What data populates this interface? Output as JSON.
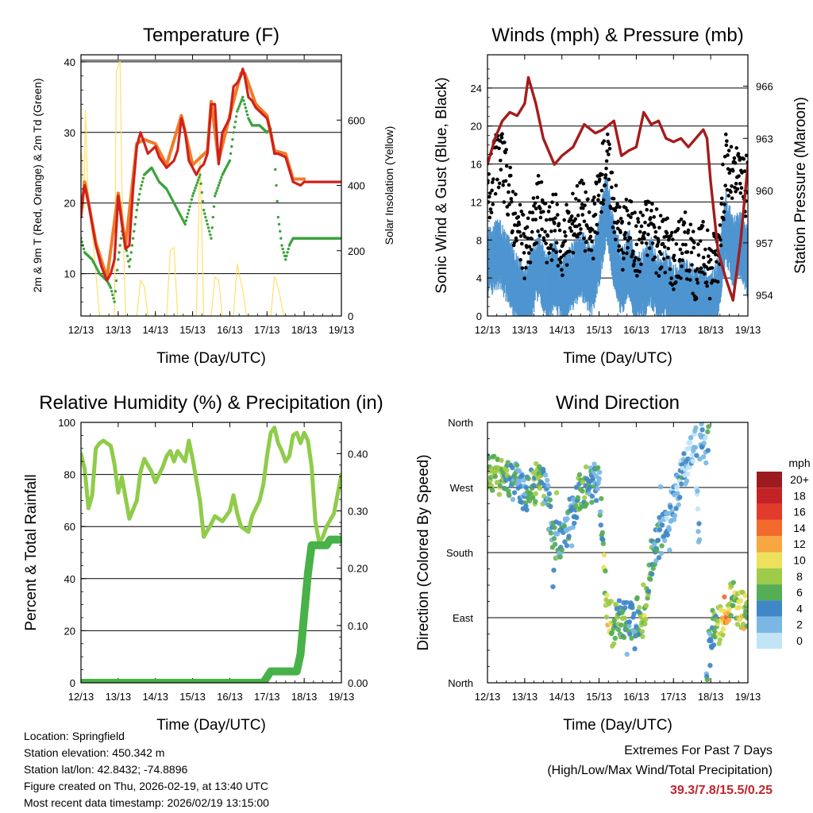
{
  "chart_data": [
    {
      "type": "line",
      "title": "Temperature (F)",
      "xlabel": "Time (Day/UTC)",
      "ylabel": "2m & 9m T (Red, Orange) & 2m Td (Green)",
      "y2label": "Solar Insolation (Yellow)",
      "x": [
        "12/13",
        "13/13",
        "14/13",
        "15/13",
        "16/13",
        "17/13",
        "18/13",
        "19/13"
      ],
      "ylim": [
        4,
        41
      ],
      "yticks": [
        10,
        20,
        30,
        40
      ],
      "y2lim": [
        0,
        800
      ],
      "y2ticks": [
        0,
        200,
        400,
        600
      ],
      "hline": 40,
      "series": [
        {
          "name": "2m T",
          "color": "#d0211c",
          "style": "line",
          "t": [
            0,
            0.05,
            0.1,
            0.2,
            0.4,
            0.55,
            0.7,
            0.8,
            0.9,
            1.0,
            1.1,
            1.2,
            1.3,
            1.4,
            1.5,
            1.55,
            1.6,
            1.7,
            1.8,
            1.9,
            2.0,
            2.1,
            2.3,
            2.5,
            2.6,
            2.7,
            2.8,
            2.9,
            3.0,
            3.1,
            3.2,
            3.3,
            3.4,
            3.5,
            3.6,
            3.7,
            3.8,
            3.9,
            4.0,
            4.1,
            4.2,
            4.3,
            4.35,
            4.4,
            4.5,
            4.6,
            4.7,
            4.8,
            4.9,
            5.0,
            5.1,
            5.2,
            5.3,
            5.5,
            5.7,
            5.9,
            6.0,
            6.1,
            6.2,
            6.3,
            6.4,
            6.5,
            6.6,
            6.7,
            6.8,
            6.9,
            7.0
          ],
          "v": [
            18,
            21,
            22.5,
            20,
            14,
            11,
            9,
            10,
            12,
            21,
            17,
            13.5,
            14,
            22,
            28,
            29,
            30,
            28.5,
            27,
            27.5,
            28,
            26.5,
            25,
            26,
            27.5,
            32,
            30,
            26,
            25,
            24,
            25,
            25.5,
            27,
            34,
            34,
            25.5,
            30,
            31,
            32,
            36.5,
            37,
            38,
            39,
            38,
            35,
            34.5,
            33.5,
            33,
            32.5,
            32,
            30,
            27,
            27,
            26.5,
            23,
            22.5,
            23,
            23,
            23,
            23,
            23,
            23,
            23,
            23,
            23,
            23,
            23
          ]
        },
        {
          "name": "9m T",
          "color": "#f07c28",
          "style": "line",
          "t": [
            0,
            0.1,
            0.4,
            0.7,
            1.0,
            1.2,
            1.5,
            1.7,
            2.0,
            2.3,
            2.7,
            3.0,
            3.4,
            3.5,
            3.7,
            4.0,
            4.3,
            4.4,
            4.7,
            5.0,
            5.2,
            5.5,
            5.7,
            6.0
          ],
          "v": [
            18.4,
            23,
            14.4,
            9.4,
            21.4,
            14,
            28.4,
            29,
            28.4,
            25.4,
            32.4,
            25.4,
            27.4,
            34.4,
            26,
            32.4,
            38.4,
            38.4,
            34,
            32.4,
            27.4,
            27,
            23.4,
            23.4
          ]
        },
        {
          "name": "2m Td",
          "color": "#3aa23a",
          "style": "dots",
          "t": [
            0,
            0.1,
            0.3,
            0.5,
            0.7,
            0.8,
            0.9,
            1.0,
            1.1,
            1.2,
            1.3,
            1.5,
            1.6,
            1.7,
            1.9,
            2.0,
            2.1,
            2.3,
            2.5,
            2.6,
            2.8,
            2.9,
            3.0,
            3.2,
            3.3,
            3.5,
            3.6,
            3.8,
            4.0,
            4.1,
            4.2,
            4.35,
            4.5,
            4.6,
            4.8,
            5.0,
            5.1,
            5.2,
            5.3,
            5.4,
            5.5,
            5.6,
            5.7,
            5.8,
            5.9,
            6.0,
            6.1,
            6.2,
            6.3,
            6.4,
            6.5,
            6.6,
            6.7,
            6.8,
            6.9,
            7.0
          ],
          "v": [
            15,
            13,
            12,
            10,
            9,
            8,
            6,
            12,
            16,
            14,
            11,
            19,
            22,
            24,
            25,
            24,
            23,
            22,
            20,
            19,
            17,
            19,
            21,
            24,
            19,
            15,
            21,
            24,
            26,
            30,
            33,
            35,
            32,
            31,
            31,
            30,
            30.5,
            27,
            18,
            14,
            12,
            14,
            15,
            15,
            15,
            15,
            15,
            15,
            15,
            15,
            15,
            15,
            15,
            15,
            15,
            15
          ]
        },
        {
          "name": "Solar Insolation",
          "color": "#ffe06a",
          "style": "line",
          "axis": "y2",
          "t": [
            0.02,
            0.08,
            0.12,
            0.18,
            0.25,
            0.35,
            0.5,
            0.7,
            0.9,
            0.95,
            1.05,
            1.1,
            1.2,
            1.5,
            1.6,
            1.7,
            1.8,
            1.9,
            2.0,
            2.2,
            2.3,
            2.4,
            2.5,
            2.6,
            2.9,
            3.0,
            3.1,
            3.2,
            3.3,
            3.5,
            3.6,
            3.7,
            3.8,
            4.1,
            4.2,
            4.25,
            4.35,
            4.45,
            5.1,
            5.2,
            5.25,
            5.35,
            5.45,
            6.5
          ],
          "v": [
            500,
            330,
            630,
            400,
            300,
            200,
            0,
            0,
            0,
            750,
            780,
            400,
            0,
            0,
            110,
            90,
            0,
            0,
            0,
            0,
            0,
            200,
            210,
            0,
            0,
            0,
            0,
            500,
            0,
            0,
            120,
            110,
            0,
            0,
            160,
            130,
            80,
            0,
            0,
            120,
            110,
            60,
            0,
            0
          ]
        }
      ],
      "x_axis_range": [
        0,
        7
      ],
      "notes": "time axis in days since 12/13"
    },
    {
      "type": "scatter",
      "title": "Winds (mph) & Pressure (mb)",
      "xlabel": "Time (Day/UTC)",
      "ylabel": "Sonic Wind & Gust (Blue, Black)",
      "y2label": "Station Pressure (Maroon)",
      "x": [
        "12/13",
        "13/13",
        "14/13",
        "15/13",
        "16/13",
        "17/13",
        "18/13",
        "19/13"
      ],
      "ylim": [
        0,
        27.5
      ],
      "yticks": [
        0,
        4,
        8,
        12,
        16,
        20,
        24
      ],
      "y2lim": [
        952.8,
        967.8
      ],
      "y2ticks": [
        954,
        957,
        960,
        963,
        966
      ],
      "series": [
        {
          "name": "Sonic Wind",
          "color": "#4e95d0",
          "style": "band",
          "t": [
            0,
            0.3,
            0.6,
            0.8,
            1.0,
            1.2,
            1.4,
            1.6,
            1.8,
            2.0,
            2.2,
            2.5,
            2.8,
            3.0,
            3.2,
            3.4,
            3.6,
            3.8,
            4.0,
            4.2,
            4.4,
            4.6,
            4.8,
            5.0,
            5.3,
            5.6,
            5.8,
            6.0,
            6.2,
            6.4,
            6.6,
            6.8,
            7.0
          ],
          "v": [
            6,
            7,
            5,
            3,
            2,
            4,
            6,
            3,
            5,
            3,
            4,
            6,
            4,
            7,
            12,
            7,
            4,
            6,
            3,
            4,
            5,
            3,
            4,
            2,
            3,
            1.5,
            2,
            1,
            3,
            10,
            7,
            8,
            6
          ]
        },
        {
          "name": "Gust",
          "color": "#000000",
          "style": "dots",
          "t": [
            0,
            0.3,
            0.6,
            0.8,
            1.0,
            1.2,
            1.4,
            1.6,
            1.8,
            2.0,
            2.2,
            2.5,
            2.8,
            3.0,
            3.2,
            3.4,
            3.6,
            3.8,
            4.0,
            4.2,
            4.4,
            4.6,
            4.8,
            5.0,
            5.3,
            5.6,
            5.8,
            6.0,
            6.2,
            6.4,
            6.6,
            6.8,
            7.0
          ],
          "v": [
            12,
            17,
            13,
            9,
            7,
            9,
            12,
            8,
            10,
            7,
            9,
            12,
            8,
            13,
            17,
            12,
            8,
            10,
            7,
            9,
            10,
            7,
            8,
            6,
            8,
            5,
            7,
            5,
            7,
            16,
            14,
            15,
            13
          ]
        },
        {
          "name": "Station Pressure",
          "color": "#a51c1c",
          "style": "line",
          "axis": "y2",
          "t": [
            0,
            0.2,
            0.4,
            0.6,
            0.8,
            1.0,
            1.1,
            1.3,
            1.5,
            1.8,
            2.0,
            2.3,
            2.6,
            2.9,
            3.1,
            3.4,
            3.6,
            3.8,
            4.0,
            4.2,
            4.4,
            4.6,
            4.8,
            5.0,
            5.2,
            5.4,
            5.6,
            5.8,
            5.9,
            6.0,
            6.2,
            6.4,
            6.6,
            6.8,
            7.0
          ],
          "v": [
            961.5,
            963,
            964,
            964.5,
            964.3,
            965,
            966.5,
            965,
            963,
            961.5,
            962,
            962.5,
            963.8,
            963.3,
            963.5,
            964,
            962,
            962.3,
            962.5,
            964.5,
            963.8,
            964,
            963,
            962.8,
            963,
            962.5,
            963,
            963.5,
            963,
            960.5,
            956.5,
            955,
            953.7,
            957,
            961.5
          ]
        }
      ]
    },
    {
      "type": "line",
      "title": "Relative Humidity (%) & Precipitation (in)",
      "xlabel": "Time (Day/UTC)",
      "ylabel": "Percent & Total Rainfall",
      "x": [
        "12/13",
        "13/13",
        "14/13",
        "15/13",
        "16/13",
        "17/13",
        "18/13",
        "19/13"
      ],
      "ylim": [
        0,
        100
      ],
      "yticks": [
        0,
        20,
        40,
        60,
        80,
        100
      ],
      "y2lim": [
        0,
        0.4545
      ],
      "y2ticks": [
        0.0,
        0.1,
        0.2,
        0.3,
        0.4
      ],
      "series": [
        {
          "name": "Relative Humidity",
          "color": "#8fcc4a",
          "style": "line",
          "t": [
            0,
            0.1,
            0.2,
            0.3,
            0.4,
            0.5,
            0.6,
            0.8,
            0.9,
            1.0,
            1.1,
            1.3,
            1.5,
            1.6,
            1.7,
            1.9,
            2.0,
            2.2,
            2.3,
            2.4,
            2.5,
            2.6,
            2.8,
            2.9,
            3.0,
            3.1,
            3.2,
            3.3,
            3.5,
            3.6,
            3.8,
            4.0,
            4.1,
            4.2,
            4.3,
            4.5,
            4.6,
            4.8,
            4.9,
            5.0,
            5.1,
            5.2,
            5.3,
            5.4,
            5.5,
            5.6,
            5.7,
            5.8,
            5.9,
            6.0,
            6.1,
            6.2,
            6.3,
            6.4,
            6.5,
            6.6,
            6.8,
            7.0
          ],
          "v": [
            88,
            82,
            67,
            72,
            90,
            92,
            93,
            91,
            84,
            73,
            79,
            63,
            70,
            81,
            86,
            81,
            77,
            83,
            87,
            89,
            85,
            89,
            85,
            93,
            86,
            78,
            70,
            56,
            61,
            64,
            62,
            66,
            72,
            65,
            60,
            58,
            64,
            70,
            76,
            87,
            96,
            98,
            92,
            89,
            85,
            87,
            95,
            96,
            92,
            96,
            93,
            83,
            62,
            54,
            56,
            60,
            65,
            80
          ]
        },
        {
          "name": "Total Precipitation",
          "color": "#48b148",
          "style": "line",
          "axis": "y2",
          "t": [
            0,
            4.9,
            5.0,
            5.1,
            5.8,
            5.9,
            6.0,
            6.1,
            6.2,
            6.3,
            6.6,
            6.7,
            6.8,
            7.0
          ],
          "v": [
            0,
            0,
            0.01,
            0.02,
            0.02,
            0.05,
            0.12,
            0.19,
            0.24,
            0.24,
            0.24,
            0.25,
            0.25,
            0.25
          ]
        }
      ]
    },
    {
      "type": "scatter",
      "title": "Wind Direction",
      "xlabel": "Time (Day/UTC)",
      "ylabel": "Direction (Colored By Speed)",
      "x": [
        "12/13",
        "13/13",
        "14/13",
        "15/13",
        "16/13",
        "17/13",
        "18/13",
        "19/13"
      ],
      "yticks": [
        "North",
        "East",
        "South",
        "West",
        "North"
      ],
      "ytick_values": [
        0,
        90,
        180,
        270,
        360
      ],
      "colorbar": {
        "title": "mph",
        "labels": [
          "20+",
          "18",
          "16",
          "14",
          "12",
          "10",
          "8",
          "6",
          "4",
          "2",
          "0"
        ],
        "colors": [
          "#9b1b1e",
          "#c42326",
          "#e23b2c",
          "#f26a2c",
          "#f8a641",
          "#ede05a",
          "#9ecb4a",
          "#55ad56",
          "#3f87c6",
          "#7ab7e5",
          "#c2e4f7"
        ]
      },
      "series": [
        {
          "name": "Direction",
          "style": "dots",
          "t": [
            0,
            0.2,
            0.4,
            0.6,
            0.8,
            1.0,
            1.2,
            1.4,
            1.6,
            1.8,
            2.0,
            2.2,
            2.4,
            2.6,
            2.8,
            3.0,
            3.2,
            3.4,
            3.6,
            3.8,
            4.0,
            4.2,
            4.4,
            4.6,
            4.8,
            5.0,
            5.2,
            5.4,
            5.6,
            5.8,
            6.0,
            6.2,
            6.4,
            6.6,
            6.8,
            7.0
          ],
          "v": [
            295,
            290,
            285,
            280,
            275,
            265,
            270,
            280,
            255,
            200,
            195,
            225,
            255,
            270,
            275,
            280,
            98,
            82,
            90,
            85,
            92,
            78,
            170,
            195,
            220,
            250,
            280,
            310,
            335,
            20,
            75,
            75,
            100,
            115,
            100,
            95
          ],
          "speed": [
            6,
            8,
            7,
            5,
            4,
            3,
            6,
            7,
            4,
            5,
            4,
            3,
            5,
            6,
            4,
            3,
            10,
            7,
            6,
            5,
            4,
            8,
            5,
            4,
            3,
            2,
            3,
            2,
            1,
            2,
            4,
            8,
            12,
            6,
            10,
            8
          ]
        }
      ]
    }
  ],
  "info": {
    "location": "Location: Springfield",
    "elevation": "Station elevation: 450.342 m",
    "latlon": "Station lat/lon: 42.8432; -74.8896",
    "created": "Figure created on Thu, 2026-02-19, at 13:40 UTC",
    "timestamp": "Most recent data timestamp: 2026/02/19 13:15:00"
  },
  "extremes": {
    "title": "Extremes For Past 7 Days",
    "subtitle": "(High/Low/Max Wind/Total Precipitation)",
    "values": "39.3/7.8/15.5/0.25"
  }
}
